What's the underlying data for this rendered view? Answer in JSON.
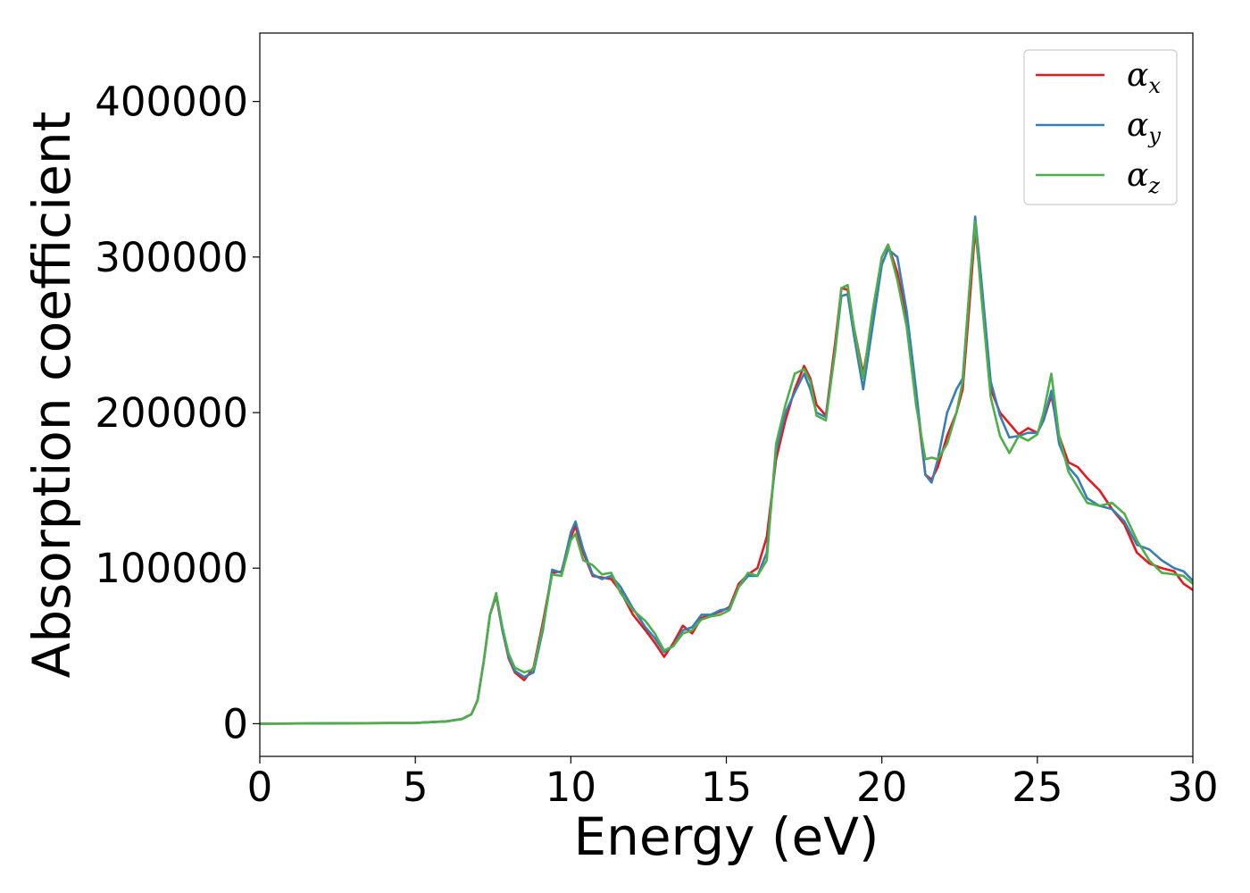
{
  "chart_data": {
    "type": "line",
    "xlabel": "Energy (eV)",
    "ylabel": "Absorption coefficient",
    "xlim": [
      0,
      30
    ],
    "ylim": [
      -21000,
      444000
    ],
    "xticks": [
      0,
      5,
      10,
      15,
      20,
      25,
      30
    ],
    "yticks": [
      0,
      100000,
      200000,
      300000,
      400000
    ],
    "grid": false,
    "legend_position": "top-right",
    "series": [
      {
        "name": "αx",
        "symbol": "α",
        "subscript": "x",
        "color": "#e41a1c",
        "x": [
          0,
          5,
          6,
          6.5,
          6.8,
          7.0,
          7.2,
          7.4,
          7.6,
          7.8,
          8.0,
          8.2,
          8.5,
          8.8,
          9.1,
          9.4,
          9.7,
          10.0,
          10.15,
          10.4,
          10.7,
          11.0,
          11.3,
          11.6,
          12.0,
          12.4,
          12.7,
          13.0,
          13.3,
          13.6,
          13.9,
          14.2,
          14.5,
          14.8,
          15.1,
          15.4,
          15.7,
          16.0,
          16.3,
          16.6,
          16.9,
          17.2,
          17.5,
          17.7,
          17.9,
          18.2,
          18.5,
          18.7,
          18.9,
          19.1,
          19.4,
          19.7,
          20.0,
          20.2,
          20.5,
          20.8,
          21.1,
          21.4,
          21.6,
          21.8,
          22.1,
          22.4,
          22.6,
          22.8,
          23.0,
          23.2,
          23.5,
          23.8,
          24.1,
          24.4,
          24.7,
          25.0,
          25.2,
          25.45,
          25.7,
          26.0,
          26.3,
          26.6,
          27.0,
          27.4,
          27.8,
          28.2,
          28.6,
          29.0,
          29.4,
          29.7,
          30.0
        ],
        "y": [
          0,
          500,
          1500,
          3000,
          6000,
          15000,
          40000,
          70000,
          82000,
          60000,
          42000,
          33000,
          28000,
          36000,
          65000,
          97000,
          98000,
          120000,
          127000,
          110000,
          95000,
          94000,
          93000,
          85000,
          70000,
          60000,
          52000,
          43000,
          52000,
          63000,
          58000,
          68000,
          70000,
          72000,
          75000,
          90000,
          96000,
          100000,
          120000,
          170000,
          195000,
          215000,
          230000,
          222000,
          205000,
          198000,
          245000,
          280000,
          279000,
          255000,
          225000,
          260000,
          300000,
          308000,
          290000,
          260000,
          210000,
          160000,
          157000,
          165000,
          185000,
          200000,
          215000,
          265000,
          318000,
          280000,
          215000,
          200000,
          193000,
          186000,
          190000,
          187000,
          195000,
          211000,
          185000,
          168000,
          165000,
          158000,
          150000,
          138000,
          128000,
          110000,
          103000,
          100000,
          98000,
          90000,
          86000
        ]
      },
      {
        "name": "αy",
        "symbol": "α",
        "subscript": "y",
        "color": "#377eb8",
        "x": [
          0,
          5,
          6,
          6.5,
          6.8,
          7.0,
          7.2,
          7.4,
          7.6,
          7.8,
          8.0,
          8.2,
          8.5,
          8.8,
          9.1,
          9.4,
          9.7,
          10.0,
          10.15,
          10.4,
          10.7,
          11.0,
          11.3,
          11.6,
          12.0,
          12.4,
          12.7,
          13.0,
          13.3,
          13.6,
          13.9,
          14.2,
          14.5,
          14.8,
          15.1,
          15.4,
          15.7,
          16.0,
          16.3,
          16.6,
          16.9,
          17.2,
          17.5,
          17.7,
          17.9,
          18.2,
          18.5,
          18.7,
          18.9,
          19.1,
          19.4,
          19.7,
          20.0,
          20.2,
          20.5,
          20.8,
          21.1,
          21.4,
          21.6,
          21.8,
          22.1,
          22.4,
          22.6,
          22.8,
          23.0,
          23.2,
          23.5,
          23.8,
          24.1,
          24.4,
          24.7,
          25.0,
          25.2,
          25.45,
          25.7,
          26.0,
          26.3,
          26.6,
          27.0,
          27.4,
          27.8,
          28.2,
          28.6,
          29.0,
          29.4,
          29.7,
          30.0
        ],
        "y": [
          0,
          500,
          1500,
          3000,
          6000,
          15000,
          40000,
          70000,
          83000,
          60000,
          43000,
          34000,
          30000,
          33000,
          60000,
          99000,
          97000,
          123000,
          130000,
          112000,
          96000,
          93000,
          95000,
          88000,
          74000,
          62000,
          55000,
          46000,
          50000,
          60000,
          62000,
          70000,
          70000,
          73000,
          74000,
          88000,
          95000,
          95000,
          110000,
          175000,
          200000,
          213000,
          225000,
          215000,
          200000,
          197000,
          240000,
          275000,
          276000,
          250000,
          215000,
          255000,
          295000,
          305000,
          300000,
          265000,
          215000,
          160000,
          155000,
          170000,
          200000,
          215000,
          222000,
          275000,
          326000,
          285000,
          220000,
          198000,
          184000,
          185000,
          187000,
          187000,
          195000,
          214000,
          180000,
          165000,
          158000,
          145000,
          140000,
          138000,
          130000,
          115000,
          112000,
          105000,
          100000,
          98000,
          92000
        ]
      },
      {
        "name": "αz",
        "symbol": "α",
        "subscript": "z",
        "color": "#4daf4a",
        "x": [
          0,
          5,
          6,
          6.5,
          6.8,
          7.0,
          7.2,
          7.4,
          7.6,
          7.8,
          8.0,
          8.2,
          8.5,
          8.8,
          9.1,
          9.4,
          9.7,
          10.0,
          10.15,
          10.4,
          10.7,
          11.0,
          11.3,
          11.6,
          12.0,
          12.4,
          12.7,
          13.0,
          13.3,
          13.6,
          13.9,
          14.2,
          14.5,
          14.8,
          15.1,
          15.4,
          15.7,
          16.0,
          16.3,
          16.6,
          16.9,
          17.2,
          17.5,
          17.7,
          17.9,
          18.2,
          18.5,
          18.7,
          18.9,
          19.1,
          19.4,
          19.7,
          20.0,
          20.2,
          20.5,
          20.8,
          21.1,
          21.4,
          21.6,
          21.8,
          22.1,
          22.4,
          22.6,
          22.8,
          23.0,
          23.2,
          23.5,
          23.8,
          24.1,
          24.4,
          24.7,
          25.0,
          25.2,
          25.45,
          25.7,
          26.0,
          26.3,
          26.6,
          27.0,
          27.4,
          27.8,
          28.2,
          28.6,
          29.0,
          29.4,
          29.7,
          30.0
        ],
        "y": [
          0,
          500,
          1500,
          3000,
          6000,
          15000,
          40000,
          70000,
          84000,
          62000,
          45000,
          36000,
          33000,
          35000,
          62000,
          96000,
          95000,
          118000,
          122000,
          105000,
          102000,
          96000,
          97000,
          84000,
          73000,
          66000,
          58000,
          47000,
          50000,
          58000,
          60000,
          67000,
          69000,
          70000,
          73000,
          88000,
          97000,
          95000,
          105000,
          180000,
          205000,
          225000,
          228000,
          220000,
          198000,
          195000,
          240000,
          280000,
          282000,
          255000,
          222000,
          265000,
          300000,
          308000,
          285000,
          255000,
          205000,
          170000,
          171000,
          170000,
          180000,
          200000,
          220000,
          275000,
          323000,
          275000,
          210000,
          185000,
          174000,
          185000,
          182000,
          186000,
          200000,
          225000,
          185000,
          162000,
          152000,
          142000,
          140000,
          142000,
          135000,
          118000,
          105000,
          97000,
          96000,
          95000,
          90000
        ]
      }
    ]
  }
}
